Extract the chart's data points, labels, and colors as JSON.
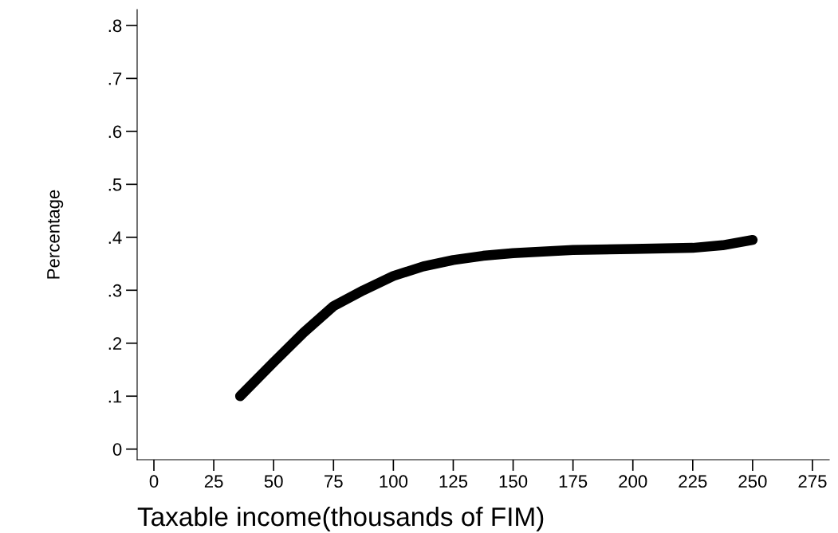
{
  "chart_data": {
    "type": "line",
    "xlabel": "Taxable income(thousands of FIM)",
    "ylabel": "Percentage",
    "x": [
      36,
      50,
      62.5,
      75,
      87.5,
      100,
      112.5,
      125,
      137.5,
      150,
      175,
      200,
      225,
      237.5,
      250
    ],
    "series": [
      {
        "color": "#000000",
        "values": [
          0.1,
          0.164,
          0.22,
          0.27,
          0.3,
          0.327,
          0.345,
          0.357,
          0.365,
          0.37,
          0.376,
          0.378,
          0.38,
          0.385,
          0.395
        ]
      }
    ],
    "xlim": [
      -7,
      282
    ],
    "ylim": [
      -0.02,
      0.83
    ],
    "xticks": [
      0,
      25,
      50,
      75,
      100,
      125,
      150,
      175,
      200,
      225,
      250,
      275
    ],
    "yticks": [
      {
        "value": 0,
        "label": "0"
      },
      {
        "value": 0.1,
        "label": ".1"
      },
      {
        "value": 0.2,
        "label": ".2"
      },
      {
        "value": 0.3,
        "label": ".3"
      },
      {
        "value": 0.4,
        "label": ".4"
      },
      {
        "value": 0.5,
        "label": ".5"
      },
      {
        "value": 0.6,
        "label": ".6"
      },
      {
        "value": 0.7,
        "label": ".7"
      },
      {
        "value": 0.8,
        "label": ".8"
      }
    ],
    "grid": false,
    "legend": false
  }
}
